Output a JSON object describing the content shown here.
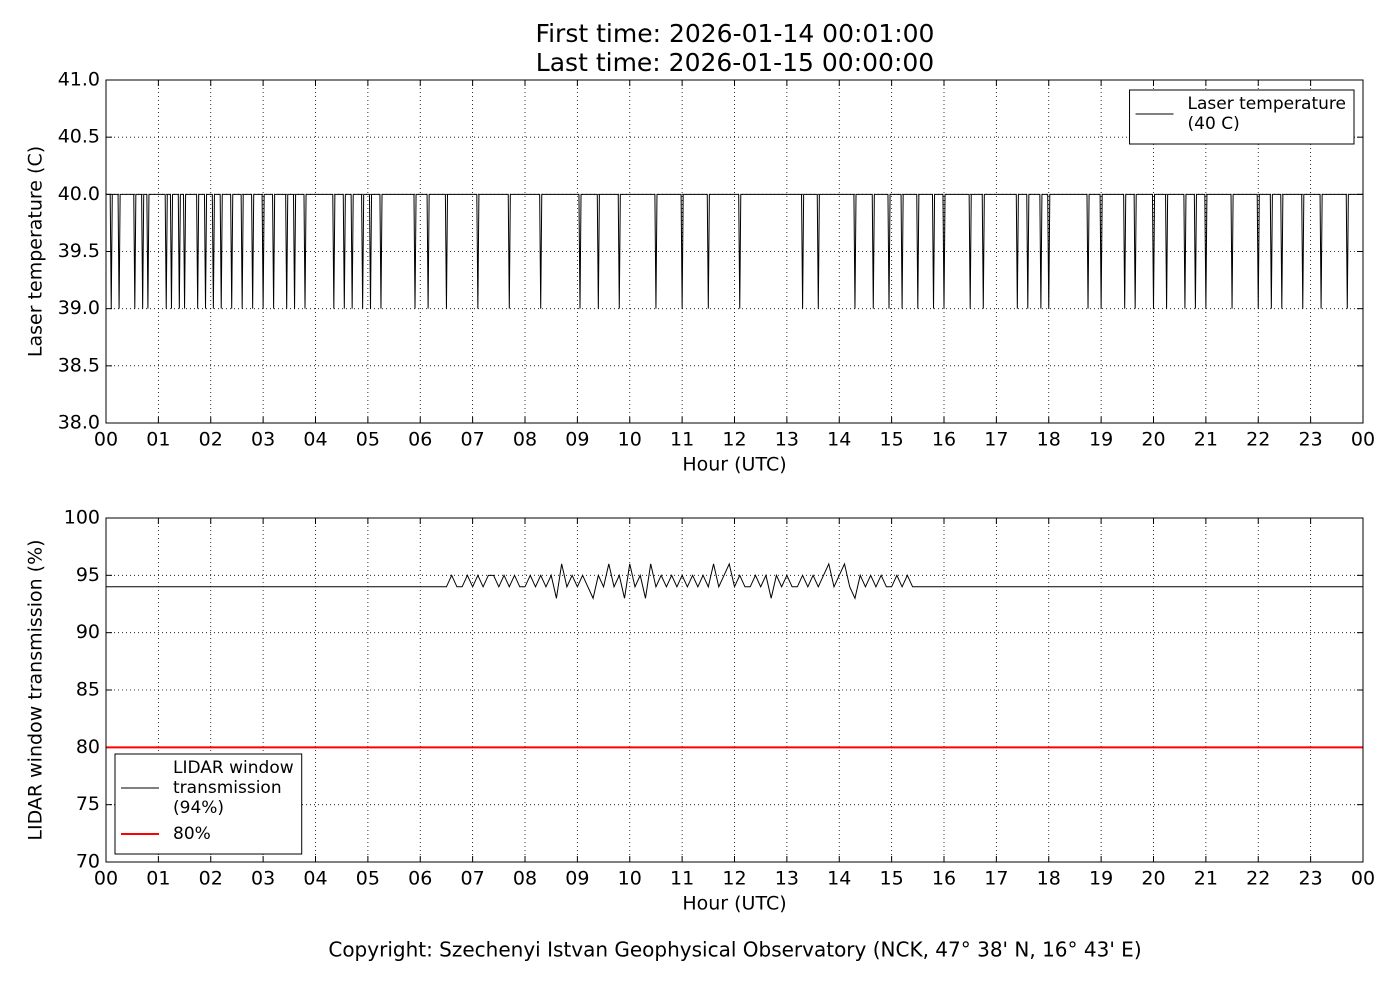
{
  "header": {
    "title_lines": [
      "First time: 2026-01-14 00:01:00",
      "Last time: 2026-01-15 00:00:00"
    ]
  },
  "footer": "Copyright: Szechenyi Istvan Geophysical Observatory (NCK, 47° 38' N, 16° 43' E)",
  "chart_data": [
    {
      "type": "line",
      "x_label": "Hour (UTC)",
      "y_label": "Laser temperature (C)",
      "xlim": [
        0,
        24
      ],
      "xticks": [
        {
          "value": 0,
          "label": "00"
        },
        {
          "value": 1,
          "label": "01"
        },
        {
          "value": 2,
          "label": "02"
        },
        {
          "value": 3,
          "label": "03"
        },
        {
          "value": 4,
          "label": "04"
        },
        {
          "value": 5,
          "label": "05"
        },
        {
          "value": 6,
          "label": "06"
        },
        {
          "value": 7,
          "label": "07"
        },
        {
          "value": 8,
          "label": "08"
        },
        {
          "value": 9,
          "label": "09"
        },
        {
          "value": 10,
          "label": "10"
        },
        {
          "value": 11,
          "label": "11"
        },
        {
          "value": 12,
          "label": "12"
        },
        {
          "value": 13,
          "label": "13"
        },
        {
          "value": 14,
          "label": "14"
        },
        {
          "value": 15,
          "label": "15"
        },
        {
          "value": 16,
          "label": "16"
        },
        {
          "value": 17,
          "label": "17"
        },
        {
          "value": 18,
          "label": "18"
        },
        {
          "value": 19,
          "label": "19"
        },
        {
          "value": 20,
          "label": "20"
        },
        {
          "value": 21,
          "label": "21"
        },
        {
          "value": 22,
          "label": "22"
        },
        {
          "value": 23,
          "label": "23"
        },
        {
          "value": 24,
          "label": "00"
        }
      ],
      "ylim": [
        38,
        41
      ],
      "yticks": [
        {
          "value": 38,
          "label": "38.0"
        },
        {
          "value": 38.5,
          "label": "38.5"
        },
        {
          "value": 39,
          "label": "39.0"
        },
        {
          "value": 39.5,
          "label": "39.5"
        },
        {
          "value": 40,
          "label": "40.0"
        },
        {
          "value": 40.5,
          "label": "40.5"
        },
        {
          "value": 41,
          "label": "41.0"
        }
      ],
      "grid": true,
      "legend": "upper right",
      "series": [
        {
          "name": "Laser temperature\n(40 C)",
          "color": "#000000",
          "width": 1,
          "x": [
            0,
            0.08,
            0.1,
            0.12,
            0.23,
            0.25,
            0.27,
            0.53,
            0.55,
            0.57,
            0.68,
            0.7,
            0.72,
            0.78,
            0.8,
            0.82,
            1.13,
            1.15,
            1.17,
            1.23,
            1.25,
            1.27,
            1.38,
            1.4,
            1.42,
            1.48,
            1.5,
            1.52,
            1.73,
            1.75,
            1.77,
            1.88,
            1.9,
            1.92,
            2.03,
            2.05,
            2.07,
            2.18,
            2.2,
            2.22,
            2.38,
            2.4,
            2.42,
            2.58,
            2.6,
            2.62,
            2.78,
            2.8,
            2.82,
            2.98,
            3.0,
            3.02,
            3.18,
            3.2,
            3.22,
            3.43,
            3.45,
            3.47,
            3.58,
            3.6,
            3.62,
            3.78,
            3.8,
            3.82,
            4.33,
            4.35,
            4.37,
            4.53,
            4.55,
            4.57,
            4.68,
            4.7,
            4.72,
            4.88,
            4.9,
            4.92,
            5.03,
            5.05,
            5.07,
            5.23,
            5.25,
            5.27,
            5.88,
            5.9,
            5.92,
            6.13,
            6.15,
            6.17,
            6.48,
            6.5,
            6.52,
            7.08,
            7.1,
            7.12,
            7.68,
            7.7,
            7.72,
            8.28,
            8.3,
            8.32,
            9.03,
            9.05,
            9.07,
            9.38,
            9.4,
            9.42,
            9.78,
            9.8,
            9.82,
            10.48,
            10.5,
            10.52,
            10.98,
            11.0,
            11.02,
            11.48,
            11.5,
            11.52,
            12.08,
            12.1,
            12.12,
            13.28,
            13.3,
            13.32,
            13.58,
            13.6,
            13.62,
            14.28,
            14.3,
            14.32,
            14.63,
            14.65,
            14.67,
            14.93,
            14.95,
            14.97,
            15.18,
            15.2,
            15.22,
            15.48,
            15.5,
            15.52,
            15.78,
            15.8,
            15.82,
            15.98,
            16.0,
            16.02,
            16.48,
            16.5,
            16.52,
            16.73,
            16.75,
            16.77,
            17.38,
            17.4,
            17.42,
            17.58,
            17.6,
            17.62,
            17.83,
            17.85,
            17.87,
            17.98,
            18.0,
            18.02,
            18.73,
            18.75,
            18.77,
            18.98,
            19.0,
            19.02,
            19.43,
            19.45,
            19.47,
            19.63,
            19.65,
            19.67,
            19.98,
            20.0,
            20.02,
            20.23,
            20.25,
            20.27,
            20.58,
            20.6,
            20.62,
            20.78,
            20.8,
            20.82,
            20.98,
            21.0,
            21.02,
            21.48,
            21.5,
            21.52,
            21.98,
            22.0,
            22.02,
            22.23,
            22.25,
            22.27,
            22.43,
            22.45,
            22.47,
            22.83,
            22.85,
            22.87,
            23.18,
            23.2,
            23.22,
            23.68,
            23.7,
            23.72,
            24
          ],
          "values": [
            40,
            40,
            39,
            40,
            40,
            39,
            40,
            40,
            39,
            40,
            40,
            39,
            40,
            40,
            39,
            40,
            40,
            39,
            40,
            40,
            39,
            40,
            40,
            39,
            40,
            40,
            39,
            40,
            40,
            39,
            40,
            40,
            39,
            40,
            40,
            39,
            40,
            40,
            39,
            40,
            40,
            39,
            40,
            40,
            39,
            40,
            40,
            39,
            40,
            40,
            39,
            40,
            40,
            39,
            40,
            40,
            39,
            40,
            40,
            39,
            40,
            40,
            39,
            40,
            40,
            39,
            40,
            40,
            39,
            40,
            40,
            39,
            40,
            40,
            39,
            40,
            40,
            39,
            40,
            40,
            39,
            40,
            40,
            39,
            40,
            40,
            39,
            40,
            40,
            39,
            40,
            40,
            39,
            40,
            40,
            39,
            40,
            40,
            39,
            40,
            40,
            39,
            40,
            40,
            39,
            40,
            40,
            39,
            40,
            40,
            39,
            40,
            40,
            39,
            40,
            40,
            39,
            40,
            40,
            39,
            40,
            40,
            39,
            40,
            40,
            39,
            40,
            40,
            39,
            40,
            40,
            39,
            40,
            40,
            39,
            40,
            40,
            39,
            40,
            40,
            39,
            40,
            40,
            39,
            40,
            40,
            39,
            40,
            40,
            39,
            40,
            40,
            39,
            40,
            40,
            39,
            40,
            40,
            39,
            40,
            40,
            39,
            40,
            40,
            39,
            40,
            40,
            39,
            40,
            40,
            39,
            40,
            40,
            39,
            40,
            40,
            39,
            40,
            40,
            39,
            40,
            40,
            39,
            40,
            40,
            39,
            40,
            40,
            39,
            40,
            40,
            39,
            40,
            40,
            39,
            40,
            40,
            39,
            40,
            40,
            39,
            40,
            40,
            39,
            40,
            40,
            39,
            40,
            40,
            39,
            40,
            40,
            39,
            40,
            40
          ]
        }
      ]
    },
    {
      "type": "line",
      "x_label": "Hour (UTC)",
      "y_label": "LIDAR window transmission (%)",
      "xlim": [
        0,
        24
      ],
      "xticks": [
        {
          "value": 0,
          "label": "00"
        },
        {
          "value": 1,
          "label": "01"
        },
        {
          "value": 2,
          "label": "02"
        },
        {
          "value": 3,
          "label": "03"
        },
        {
          "value": 4,
          "label": "04"
        },
        {
          "value": 5,
          "label": "05"
        },
        {
          "value": 6,
          "label": "06"
        },
        {
          "value": 7,
          "label": "07"
        },
        {
          "value": 8,
          "label": "08"
        },
        {
          "value": 9,
          "label": "09"
        },
        {
          "value": 10,
          "label": "10"
        },
        {
          "value": 11,
          "label": "11"
        },
        {
          "value": 12,
          "label": "12"
        },
        {
          "value": 13,
          "label": "13"
        },
        {
          "value": 14,
          "label": "14"
        },
        {
          "value": 15,
          "label": "15"
        },
        {
          "value": 16,
          "label": "16"
        },
        {
          "value": 17,
          "label": "17"
        },
        {
          "value": 18,
          "label": "18"
        },
        {
          "value": 19,
          "label": "19"
        },
        {
          "value": 20,
          "label": "20"
        },
        {
          "value": 21,
          "label": "21"
        },
        {
          "value": 22,
          "label": "22"
        },
        {
          "value": 23,
          "label": "23"
        },
        {
          "value": 24,
          "label": "00"
        }
      ],
      "ylim": [
        70,
        100
      ],
      "yticks": [
        70,
        75,
        80,
        85,
        90,
        95,
        100
      ],
      "grid": true,
      "legend": "lower left",
      "series": [
        {
          "name": "LIDAR window\ntransmission\n(94%)",
          "color": "#000000",
          "width": 1,
          "x": [
            0,
            6.5,
            6.6,
            6.7,
            6.8,
            6.9,
            7.0,
            7.1,
            7.2,
            7.3,
            7.4,
            7.5,
            7.6,
            7.7,
            7.8,
            7.9,
            8.0,
            8.1,
            8.2,
            8.3,
            8.4,
            8.5,
            8.6,
            8.7,
            8.8,
            8.9,
            9.0,
            9.1,
            9.2,
            9.3,
            9.4,
            9.5,
            9.6,
            9.7,
            9.8,
            9.9,
            10.0,
            10.1,
            10.2,
            10.3,
            10.4,
            10.5,
            10.6,
            10.7,
            10.8,
            10.9,
            11.0,
            11.1,
            11.2,
            11.3,
            11.4,
            11.5,
            11.6,
            11.7,
            11.8,
            11.9,
            12.0,
            12.1,
            12.2,
            12.3,
            12.4,
            12.5,
            12.6,
            12.7,
            12.8,
            12.9,
            13.0,
            13.1,
            13.2,
            13.3,
            13.4,
            13.5,
            13.6,
            13.7,
            13.8,
            13.9,
            14.0,
            14.1,
            14.2,
            14.3,
            14.4,
            14.5,
            14.6,
            14.7,
            14.8,
            14.9,
            15.0,
            15.1,
            15.2,
            15.3,
            15.4,
            15.5,
            24
          ],
          "values": [
            94,
            94,
            95,
            94,
            94,
            95,
            94,
            95,
            94,
            95,
            95,
            94,
            95,
            94,
            95,
            94,
            94,
            95,
            94,
            95,
            94,
            95,
            93,
            96,
            94,
            95,
            94,
            95,
            94,
            93,
            95,
            94,
            96,
            94,
            95,
            93,
            96,
            94,
            95,
            93,
            96,
            94,
            95,
            94,
            95,
            94,
            95,
            94,
            95,
            94,
            95,
            94,
            96,
            94,
            95,
            96,
            94,
            95,
            94,
            94,
            95,
            94,
            95,
            93,
            95,
            94,
            95,
            94,
            94,
            95,
            94,
            95,
            94,
            95,
            96,
            94,
            95,
            96,
            94,
            93,
            95,
            94,
            95,
            94,
            95,
            94,
            94,
            95,
            94,
            95,
            94,
            94,
            94
          ]
        },
        {
          "name": "80%",
          "color": "#ff0000",
          "width": 2,
          "x": [
            0,
            24
          ],
          "values": [
            80,
            80
          ]
        }
      ]
    }
  ]
}
